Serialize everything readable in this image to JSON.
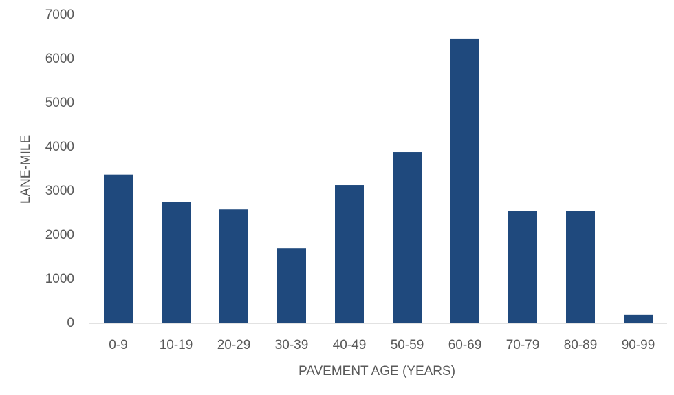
{
  "chart_data": {
    "type": "bar",
    "x_label": "PAVEMENT AGE (YEARS)",
    "y_label": "LANE-MILE",
    "categories": [
      "0-9",
      "10-19",
      "20-29",
      "30-39",
      "40-49",
      "50-59",
      "60-69",
      "70-79",
      "80-89",
      "90-99"
    ],
    "values": [
      3380,
      2760,
      2590,
      1700,
      3140,
      3890,
      6470,
      2560,
      2560,
      190
    ],
    "color": "#1f497d",
    "ylim": [
      0,
      7000
    ],
    "yticks": [
      0,
      1000,
      2000,
      3000,
      4000,
      5000,
      6000,
      7000
    ],
    "grid": false
  }
}
